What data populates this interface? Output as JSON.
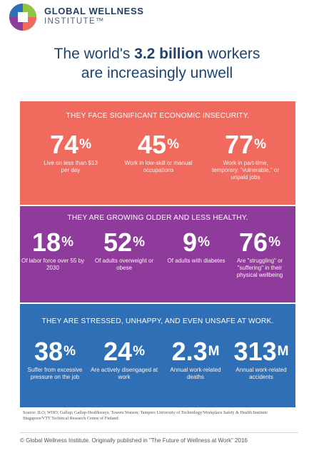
{
  "header": {
    "logo_line1": "GLOBAL WELLNESS",
    "logo_line2": "INSTITUTE™",
    "logo_icon": "gwi-quadrant-logo-icon",
    "colors": {
      "navy": "#1f3f66"
    }
  },
  "headline": {
    "line1_pre": "The world's ",
    "line1_bold": "3.2 billion",
    "line1_post": " workers",
    "line2": "are increasingly unwell"
  },
  "sections": [
    {
      "title": "THEY FACE SIGNIFICANT ECONOMIC INSECURITY.",
      "color": "#f06a5e",
      "stats": [
        {
          "value": "74",
          "unit": "%",
          "label": "Live on less than $13 per day"
        },
        {
          "value": "45",
          "unit": "%",
          "label": "Work in low-skill or manual occupations"
        },
        {
          "value": "77",
          "unit": "%",
          "label": "Work in part-time, temporary, \"vulnerable,\" or unpaid jobs"
        }
      ]
    },
    {
      "title": "THEY ARE GROWING OLDER AND LESS HEALTHY.",
      "color": "#8e3b9c",
      "stats": [
        {
          "value": "18",
          "unit": "%",
          "label": "Of labor force over 55 by 2030"
        },
        {
          "value": "52",
          "unit": "%",
          "label": "Of adults overweight or obese"
        },
        {
          "value": "9",
          "unit": "%",
          "label": "Of adults with diabetes"
        },
        {
          "value": "76",
          "unit": "%",
          "label": "Are \"struggling\" or \"suffering\" in their physical wellbeing"
        }
      ]
    },
    {
      "title": "THEY ARE STRESSED, UNHAPPY, AND EVEN UNSAFE AT WORK.",
      "color": "#2f6fb5",
      "stats": [
        {
          "value": "38",
          "unit": "%",
          "label": "Suffer from excessive pressure on the job"
        },
        {
          "value": "24",
          "unit": "%",
          "label": "Are actively disengaged at work"
        },
        {
          "value": "2.3",
          "unit": "M",
          "label": "Annual work-related deaths"
        },
        {
          "value": "313",
          "unit": "M",
          "label": "Annual work-related accidents"
        }
      ]
    }
  ],
  "source": "Source: ILO; WHO; Gallup; Gallup-Healthways; Towers Watson; Tampere University of Technology/Workplace Safety & Health Institute Singapore/VTT Technical Research Centre of Finland",
  "footer": "© Global Wellness Institute. Originally published in \"The Future of Wellness at Work\" 2016"
}
